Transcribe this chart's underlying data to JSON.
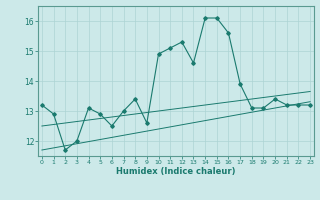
{
  "x": [
    0,
    1,
    2,
    3,
    4,
    5,
    6,
    7,
    8,
    9,
    10,
    11,
    12,
    13,
    14,
    15,
    16,
    17,
    18,
    19,
    20,
    21,
    22,
    23
  ],
  "y_main": [
    13.2,
    12.9,
    11.7,
    12.0,
    13.1,
    12.9,
    12.5,
    13.0,
    13.4,
    12.6,
    14.9,
    15.1,
    15.3,
    14.6,
    16.1,
    16.1,
    15.6,
    13.9,
    13.1,
    13.1,
    13.4,
    13.2,
    13.2,
    13.2
  ],
  "y_upper": [
    12.5,
    12.55,
    12.6,
    12.65,
    12.7,
    12.75,
    12.8,
    12.85,
    12.9,
    12.95,
    13.0,
    13.05,
    13.1,
    13.15,
    13.2,
    13.25,
    13.3,
    13.35,
    13.4,
    13.45,
    13.5,
    13.55,
    13.6,
    13.65
  ],
  "y_lower": [
    11.7,
    11.77,
    11.84,
    11.91,
    11.98,
    12.05,
    12.12,
    12.19,
    12.26,
    12.33,
    12.4,
    12.47,
    12.54,
    12.61,
    12.68,
    12.75,
    12.82,
    12.89,
    12.96,
    13.03,
    13.1,
    13.17,
    13.24,
    13.31
  ],
  "ylim": [
    11.5,
    16.5
  ],
  "yticks": [
    12,
    13,
    14,
    15,
    16
  ],
  "xticks": [
    0,
    1,
    2,
    3,
    4,
    5,
    6,
    7,
    8,
    9,
    10,
    11,
    12,
    13,
    14,
    15,
    16,
    17,
    18,
    19,
    20,
    21,
    22,
    23
  ],
  "xlabel": "Humidex (Indice chaleur)",
  "line_color": "#1a7a6e",
  "bg_color": "#cce9e9",
  "grid_color": "#add4d4",
  "spine_color": "#5a9a90"
}
